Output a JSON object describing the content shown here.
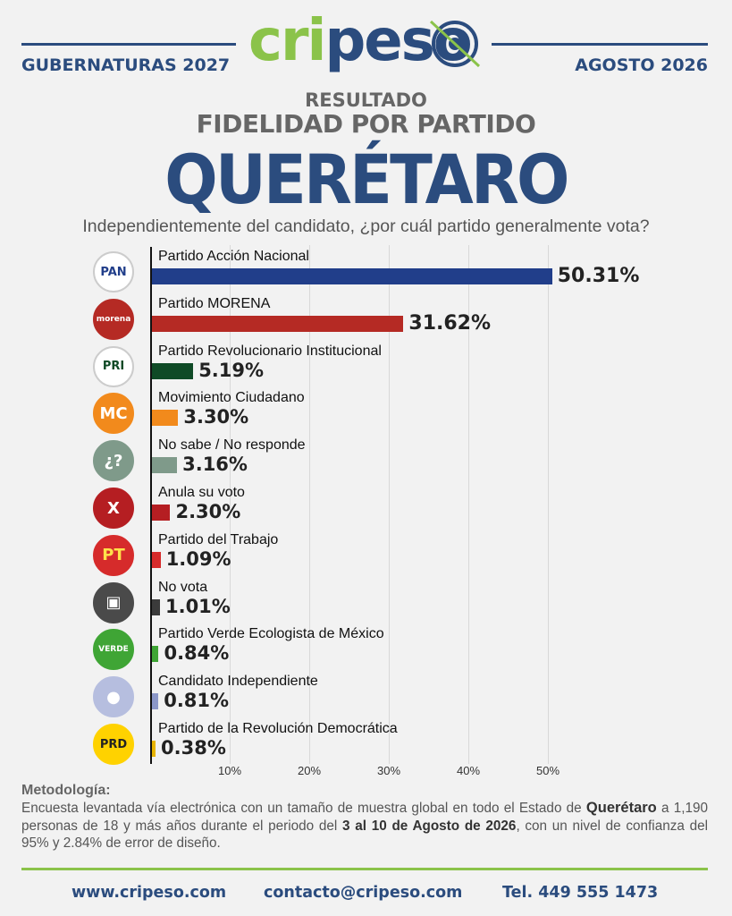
{
  "header": {
    "left": "GUBERNATURAS 2027",
    "right": "AGOSTO 2026",
    "logo_left": "cri",
    "logo_right": "peso"
  },
  "titles": {
    "line1": "RESULTADO",
    "line2": "FIDELIDAD POR PARTIDO",
    "state": "QUERÉTARO",
    "question": "Independientemente del candidato, ¿por cuál partido generalmente vota?"
  },
  "chart_data": {
    "type": "bar",
    "orientation": "horizontal",
    "categories": [
      "Partido Acción Nacional",
      "Partido MORENA",
      "Partido Revolucionario Institucional",
      "Movimiento Ciudadano",
      "No sabe / No responde",
      "Anula su voto",
      "Partido del Trabajo",
      "No vota",
      "Partido Verde Ecologista de México",
      "Candidato Independiente",
      "Partido de la Revolución Democrática"
    ],
    "values": [
      50.31,
      31.62,
      5.19,
      3.3,
      3.16,
      2.3,
      1.09,
      1.01,
      0.84,
      0.81,
      0.38
    ],
    "value_labels": [
      "50.31%",
      "31.62%",
      "5.19%",
      "3.30%",
      "3.16%",
      "2.30%",
      "1.09%",
      "1.01%",
      "0.84%",
      "0.81%",
      "0.38%"
    ],
    "colors": [
      "#213e8a",
      "#b52a24",
      "#0f4a26",
      "#f28a1c",
      "#7f9a8a",
      "#b51e22",
      "#d62b2b",
      "#3b3b3b",
      "#3fa535",
      "#8b97c8",
      "#e8b400"
    ],
    "icons": [
      {
        "name": "pan-logo-icon",
        "text": "PAN",
        "bg": "#ffffff",
        "fg": "#213e8a"
      },
      {
        "name": "morena-logo-icon",
        "text": "morena",
        "bg": "#b52a24",
        "fg": "#ffffff"
      },
      {
        "name": "pri-logo-icon",
        "text": "PRI",
        "bg": "#ffffff",
        "fg": "#0f4a26"
      },
      {
        "name": "mc-logo-icon",
        "text": "MC",
        "bg": "#f28a1c",
        "fg": "#ffffff"
      },
      {
        "name": "question-icon",
        "text": "¿?",
        "bg": "#7f9a8a",
        "fg": "#ffffff"
      },
      {
        "name": "cross-icon",
        "text": "X",
        "bg": "#b51e22",
        "fg": "#ffffff"
      },
      {
        "name": "pt-logo-icon",
        "text": "PT",
        "bg": "#d62b2b",
        "fg": "#ffe14a"
      },
      {
        "name": "ballot-box-icon",
        "text": "▣",
        "bg": "#4a4a4a",
        "fg": "#ffffff"
      },
      {
        "name": "verde-logo-icon",
        "text": "VERDE",
        "bg": "#3fa535",
        "fg": "#ffffff"
      },
      {
        "name": "person-icon",
        "text": "●",
        "bg": "#b6bedf",
        "fg": "#ffffff"
      },
      {
        "name": "prd-logo-icon",
        "text": "PRD",
        "bg": "#ffd200",
        "fg": "#222222"
      }
    ],
    "x_ticks": [
      10,
      20,
      30,
      40,
      50
    ],
    "x_tick_labels": [
      "10%",
      "20%",
      "30%",
      "40%",
      "50%"
    ],
    "xlim": [
      0,
      52
    ],
    "grid": true
  },
  "methodology": {
    "title": "Metodología:",
    "p1": "Encuesta levantada vía electrónica con un tamaño de muestra global en todo el Estado de ",
    "state_bold": "Querétaro",
    "p2": " a 1,190 personas de 18 y más años durante el periodo del ",
    "dates_bold": "3 al 10 de Agosto de 2026",
    "p3": ", con un nivel de confianza del 95% y 2.84% de error de diseño."
  },
  "footer": {
    "web": "www.cripeso.com",
    "email": "contacto@cripeso.com",
    "phone": "Tel. 449 555 1473"
  }
}
